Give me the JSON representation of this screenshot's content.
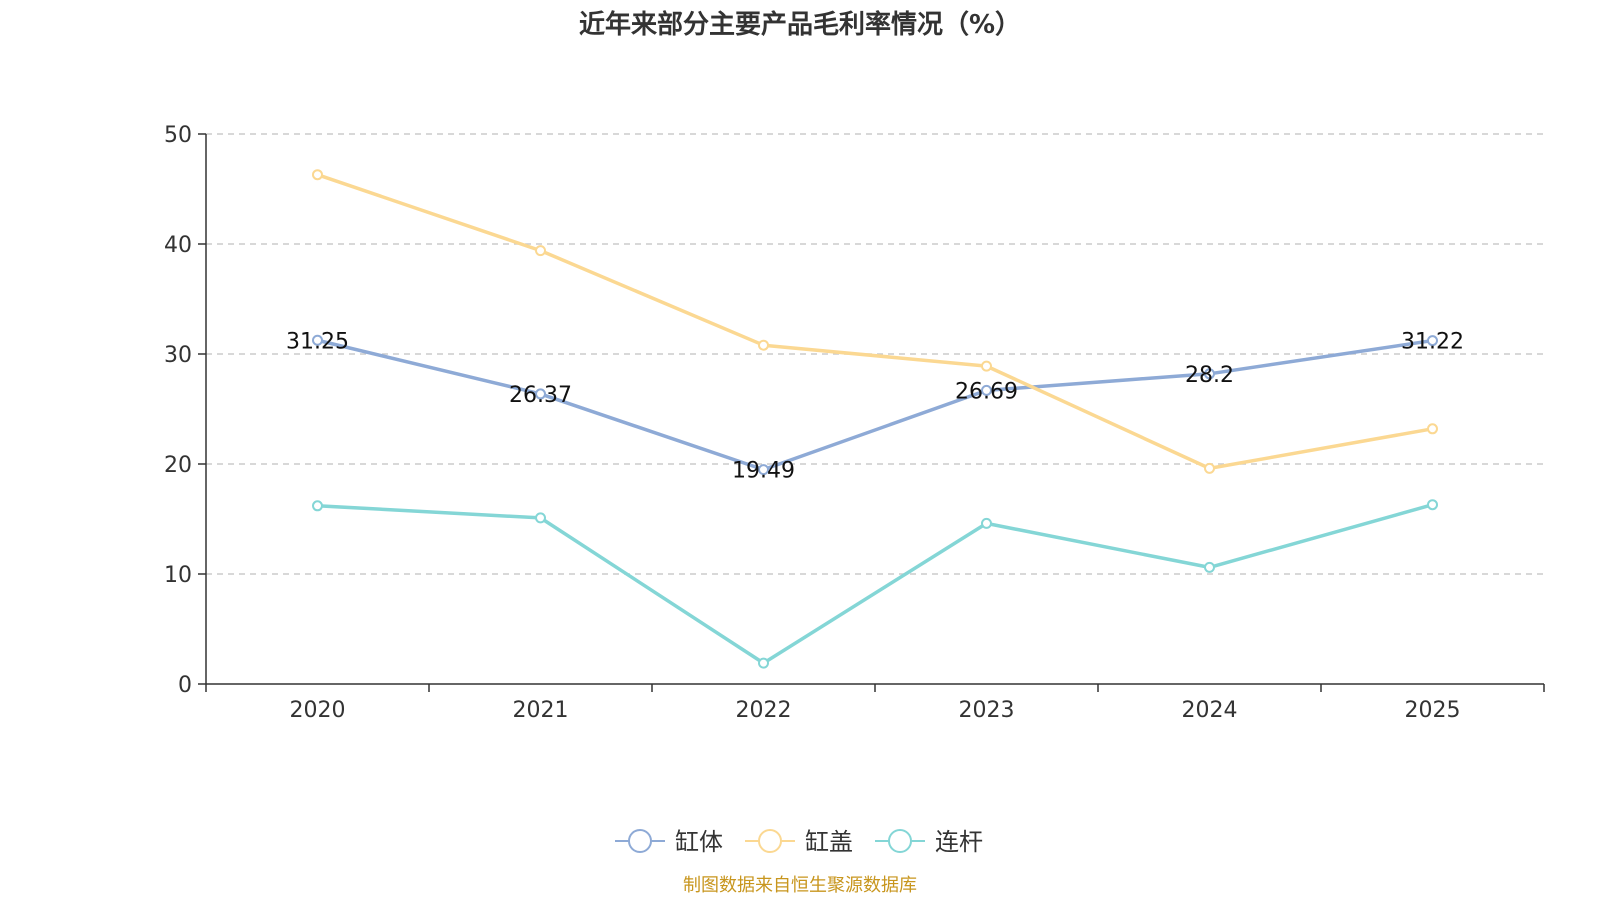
{
  "chart_data": {
    "type": "line",
    "title": "近年来部分主要产品毛利率情况（%）",
    "categories": [
      "2020",
      "2021",
      "2022",
      "2023",
      "2024",
      "2025"
    ],
    "ylim": [
      0,
      50
    ],
    "yticks": [
      0,
      10,
      20,
      30,
      40,
      50
    ],
    "grid": true,
    "legend_position": "bottom",
    "series": [
      {
        "name": "缸体",
        "color": "#8eaad6",
        "values": [
          31.25,
          26.37,
          19.49,
          26.69,
          28.2,
          31.22
        ],
        "labels": [
          "31.25",
          "26.37",
          "19.49",
          "26.69",
          "28.2",
          "31.22"
        ]
      },
      {
        "name": "缸盖",
        "color": "#fbd892",
        "values": [
          46.3,
          39.4,
          30.8,
          28.9,
          19.6,
          23.2
        ]
      },
      {
        "name": "连杆",
        "color": "#84d6d6",
        "values": [
          16.2,
          15.1,
          1.9,
          14.6,
          10.6,
          16.3
        ]
      }
    ],
    "source": "制图数据来自恒生聚源数据库"
  }
}
